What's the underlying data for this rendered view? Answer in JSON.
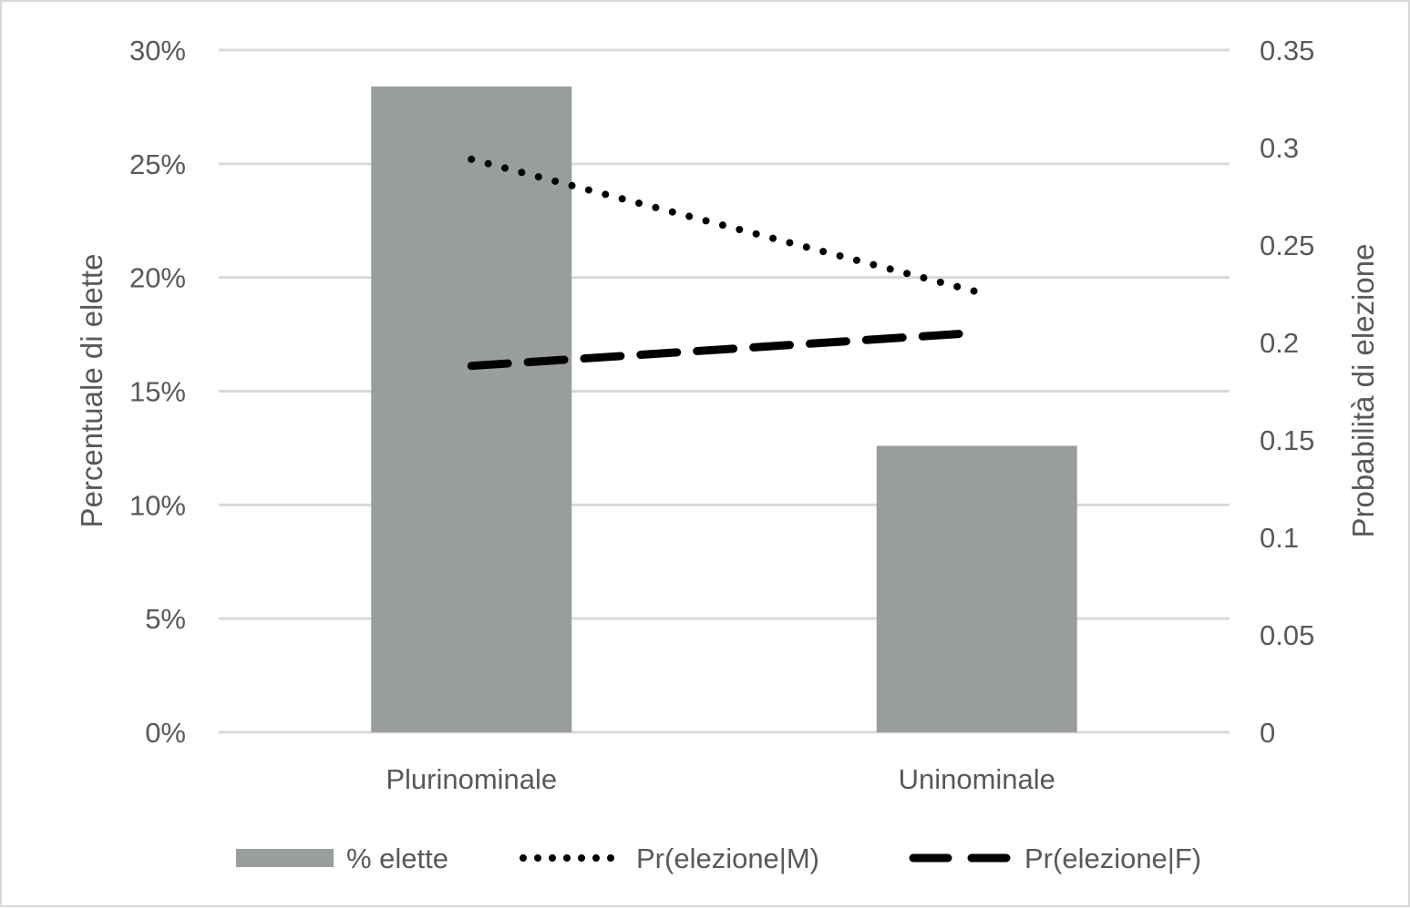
{
  "chart_data": {
    "type": "bar",
    "categories": [
      "Plurinominale",
      "Uninominale"
    ],
    "series": [
      {
        "name": "% elette",
        "type": "bar",
        "axis": "left",
        "values": [
          28.4,
          12.6
        ]
      },
      {
        "name": "Pr(elezione|M)",
        "type": "line",
        "style": "dotted",
        "axis": "right",
        "values": [
          0.294,
          0.226
        ]
      },
      {
        "name": "Pr(elezione|F)",
        "type": "line",
        "style": "dashed",
        "axis": "right",
        "values": [
          0.188,
          0.205
        ]
      }
    ],
    "ylabel": "Percentuale di elette",
    "y2label": "Probabilità di elezione",
    "ylim": [
      0,
      30
    ],
    "y2lim": [
      0,
      0.35
    ],
    "yticks": [
      "0%",
      "5%",
      "10%",
      "15%",
      "20%",
      "25%",
      "30%"
    ],
    "y2ticks": [
      "0",
      "0.05",
      "0.1",
      "0.15",
      "0.2",
      "0.25",
      "0.3",
      "0.35"
    ],
    "grid": true,
    "legend": "bottom",
    "colors": {
      "bar": "#9a9d9e",
      "line": "#000000",
      "grid": "#d9d9d9",
      "text": "#595959"
    }
  }
}
